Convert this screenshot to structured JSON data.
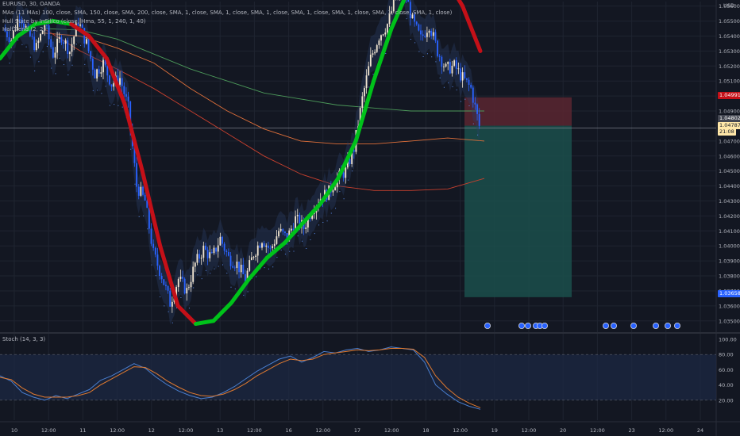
{
  "legend": {
    "symbol": "EURUSD, 30, OANDA",
    "mas": "MAs (11 MAs) 100, close, SMA, 150, close, SMA, 200, close, SMA, 1, close, SMA, 1, close, SMA, 1, close, SMA, 1, close, SMA, 1, close, SMA, 1, close, SMA, 1, close)",
    "hull": "Hull Suite by InSilico (close, Hma, 55, 1, 240, 1, 40)",
    "halftrend": "HalfTrend (2, 2)",
    "stoch": "Stoch (14, 3, 3)"
  },
  "price_tags": {
    "currency": "USD",
    "stop": "1.04991",
    "entry": "1.04802",
    "last": "1.04787",
    "countdown": "21:08",
    "target": "1.03658"
  },
  "colors": {
    "background": "#131722",
    "grid": "#1f2430",
    "up_candle": "#f0e4d0",
    "down_candle": "#2962ff",
    "hull_bull": "#00c21a",
    "hull_bear": "#c41018",
    "ma_orange": "#e0703a",
    "ma_green": "#4c9a5a",
    "ma_red": "#c8402e",
    "stoch_k": "#4a7fd0",
    "stoch_d": "#e07a30",
    "stop_zone": "#5a2630",
    "target_zone": "#1b4f4b"
  },
  "chart_data": [
    {
      "type": "candlestick",
      "title": "EURUSD, 30, OANDA",
      "y_axis_ticks": [
        "1.05600",
        "1.05500",
        "1.05400",
        "1.05300",
        "1.05200",
        "1.05100",
        "1.05000",
        "1.04900",
        "1.04700",
        "1.04600",
        "1.04500",
        "1.04400",
        "1.04300",
        "1.04200",
        "1.04100",
        "1.04000",
        "1.03900",
        "1.03800",
        "1.03700",
        "1.03600",
        "1.03500"
      ],
      "ylim": [
        1.0343,
        1.0563
      ],
      "x_axis_ticks": [
        "10",
        "12:00",
        "11",
        "12:00",
        "12",
        "12:00",
        "13",
        "12:00",
        "16",
        "12:00",
        "17",
        "12:00",
        "18",
        "12:00",
        "19",
        "12:00",
        "20",
        "12:00",
        "23",
        "12:00",
        "24"
      ],
      "close_path": [
        1.0545,
        1.0538,
        1.0555,
        1.0542,
        1.0532,
        1.0548,
        1.0528,
        1.054,
        1.053,
        1.055,
        1.0535,
        1.0515,
        1.0522,
        1.0508,
        1.0512,
        1.0492,
        1.044,
        1.043,
        1.0395,
        1.038,
        1.0362,
        1.0378,
        1.037,
        1.0388,
        1.0398,
        1.0392,
        1.0405,
        1.0392,
        1.0388,
        1.0378,
        1.0395,
        1.0405,
        1.0397,
        1.041,
        1.0405,
        1.0418,
        1.0412,
        1.0425,
        1.0432,
        1.0436,
        1.0445,
        1.045,
        1.0465,
        1.0498,
        1.0525,
        1.054,
        1.0548,
        1.0565,
        1.0572,
        1.055,
        1.0538,
        1.0548,
        1.053,
        1.0518,
        1.052,
        1.0512,
        1.0505,
        1.048
      ],
      "hull_suite": {
        "values": [
          1.0525,
          1.054,
          1.0548,
          1.055,
          1.0548,
          1.054,
          1.0525,
          1.0495,
          1.045,
          1.04,
          1.036,
          1.0348,
          1.035,
          1.0362,
          1.0378,
          1.0392,
          1.0402,
          1.0415,
          1.0428,
          1.0445,
          1.047,
          1.051,
          1.0545,
          1.0572,
          1.059,
          1.058,
          1.056,
          1.053
        ],
        "trend": [
          "bull",
          "bull",
          "bull",
          "bull",
          "bear",
          "bear",
          "bear",
          "bear",
          "bear",
          "bear",
          "bear",
          "bull",
          "bull",
          "bull",
          "bull",
          "bull",
          "bull",
          "bull",
          "bull",
          "bull",
          "bull",
          "bull",
          "bull",
          "bull",
          "bear",
          "bear",
          "bear",
          "bear"
        ]
      },
      "moving_averages": [
        {
          "values": [
            1.0542,
            1.054,
            1.0532,
            1.0522,
            1.0505,
            1.049,
            1.0478,
            1.047,
            1.0468,
            1.0468,
            1.047,
            1.0472,
            1.047
          ]
        },
        {
          "values": [
            1.0545,
            1.0544,
            1.0538,
            1.0528,
            1.0518,
            1.051,
            1.0502,
            1.0498,
            1.0494,
            1.0492,
            1.049,
            1.049,
            1.049
          ]
        },
        {
          "values": [
            1.0545,
            1.053,
            1.0518,
            1.0505,
            1.049,
            1.0475,
            1.046,
            1.0448,
            1.044,
            1.0437,
            1.0437,
            1.0438,
            1.0445
          ]
        }
      ],
      "position": {
        "entry": 1.04802,
        "stop": 1.04991,
        "target": 1.03658
      }
    },
    {
      "type": "line",
      "title": "Stoch (14, 3, 3)",
      "y_axis_ticks": [
        "100.00",
        "80.00",
        "60.00",
        "40.00",
        "20.00"
      ],
      "ylim": [
        0,
        100
      ],
      "bands": [
        20,
        80
      ],
      "series": [
        {
          "values": [
            52,
            45,
            30,
            24,
            20,
            26,
            22,
            28,
            34,
            46,
            52,
            60,
            68,
            62,
            50,
            40,
            32,
            26,
            22,
            24,
            30,
            38,
            48,
            58,
            66,
            74,
            78,
            70,
            76,
            84,
            82,
            86,
            88,
            84,
            86,
            90,
            88,
            86,
            70,
            40,
            28,
            18,
            12,
            8
          ]
        },
        {
          "values": [
            50,
            47,
            36,
            28,
            24,
            24,
            24,
            26,
            30,
            40,
            48,
            56,
            64,
            63,
            55,
            45,
            37,
            30,
            26,
            25,
            28,
            34,
            42,
            52,
            60,
            68,
            74,
            72,
            74,
            80,
            82,
            84,
            86,
            85,
            86,
            88,
            88,
            87,
            76,
            52,
            36,
            24,
            16,
            10
          ]
        }
      ]
    }
  ]
}
